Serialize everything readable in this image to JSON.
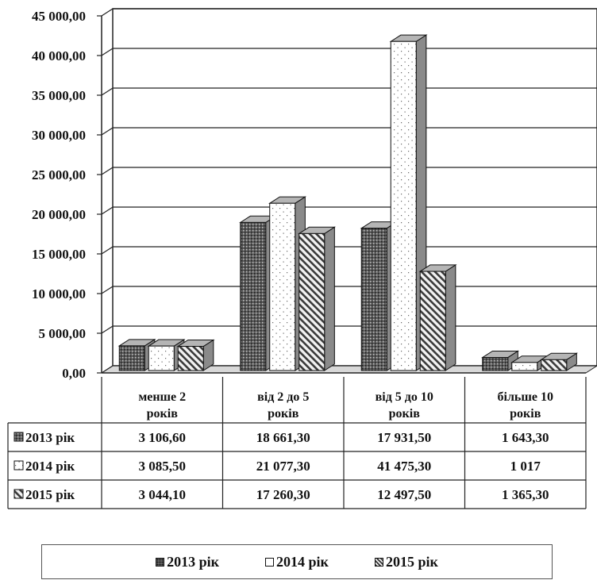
{
  "chart_data": {
    "type": "bar",
    "categories": [
      "менше 2 років",
      "від 2 до 5 років",
      "від 5 до 10 років",
      "більше 10 років"
    ],
    "category_lines": [
      [
        "менше 2",
        "років"
      ],
      [
        "від 2 до 5",
        "років"
      ],
      [
        "від 5 до 10",
        "років"
      ],
      [
        "більше 10",
        "років"
      ]
    ],
    "series": [
      {
        "name": "2013 рік",
        "values": [
          3106.6,
          18661.3,
          17931.5,
          1643.3
        ],
        "display_values": [
          "3 106,60",
          "18 661,30",
          "17 931,50",
          "1 643,30"
        ],
        "pattern": "dots-dark"
      },
      {
        "name": "2014 рік",
        "values": [
          3085.5,
          21077.3,
          41475.3,
          1017
        ],
        "display_values": [
          "3 085,50",
          "21 077,30",
          "41 475,30",
          "1 017"
        ],
        "pattern": "dots-light"
      },
      {
        "name": "2015 рік",
        "values": [
          3044.1,
          17260.3,
          12497.5,
          1365.3
        ],
        "display_values": [
          "3 044,10",
          "17 260,30",
          "12 497,50",
          "1 365,30"
        ],
        "pattern": "diagonal"
      }
    ],
    "yticks": [
      "0,00",
      "5 000,00",
      "10 000,00",
      "15 000,00",
      "20 000,00",
      "25 000,00",
      "30 000,00",
      "35 000,00",
      "40 000,00",
      "45 000,00"
    ],
    "ylim": [
      0,
      45000
    ],
    "ystep": 5000,
    "grid": true,
    "legend_position": "bottom",
    "data_table": true
  }
}
